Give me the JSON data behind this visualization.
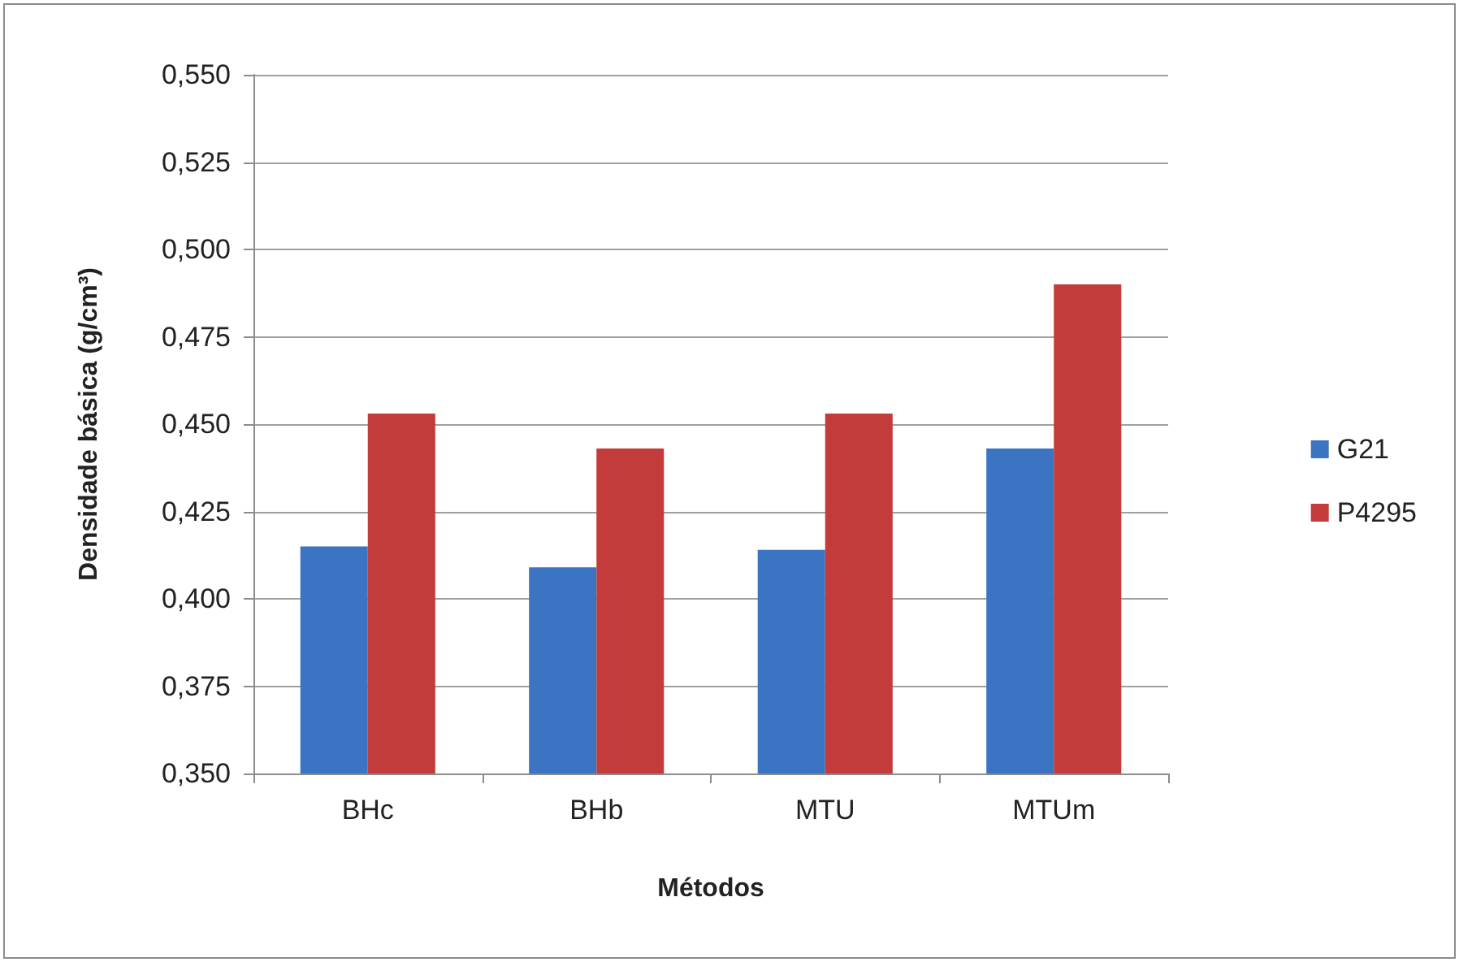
{
  "chart_data": {
    "type": "bar",
    "xlabel": "Métodos",
    "ylabel": "Densidade básica (g/cm³)",
    "categories": [
      "BHc",
      "BHb",
      "MTU",
      "MTUm"
    ],
    "series": [
      {
        "name": "G21",
        "color": "#3a74c2",
        "values": [
          0.415,
          0.409,
          0.414,
          0.443
        ]
      },
      {
        "name": "P4295",
        "color": "#c43b3b",
        "values": [
          0.453,
          0.443,
          0.453,
          0.49
        ]
      }
    ],
    "ylim": [
      0.35,
      0.55
    ],
    "yticks": [
      {
        "value": 0.35,
        "label": "0,350"
      },
      {
        "value": 0.375,
        "label": "0,375"
      },
      {
        "value": 0.4,
        "label": "0,400"
      },
      {
        "value": 0.425,
        "label": "0,425"
      },
      {
        "value": 0.45,
        "label": "0,450"
      },
      {
        "value": 0.475,
        "label": "0,475"
      },
      {
        "value": 0.5,
        "label": "0,500"
      },
      {
        "value": 0.525,
        "label": "0,525"
      },
      {
        "value": 0.55,
        "label": "0,550"
      }
    ],
    "grid": "y",
    "legend": "right"
  }
}
